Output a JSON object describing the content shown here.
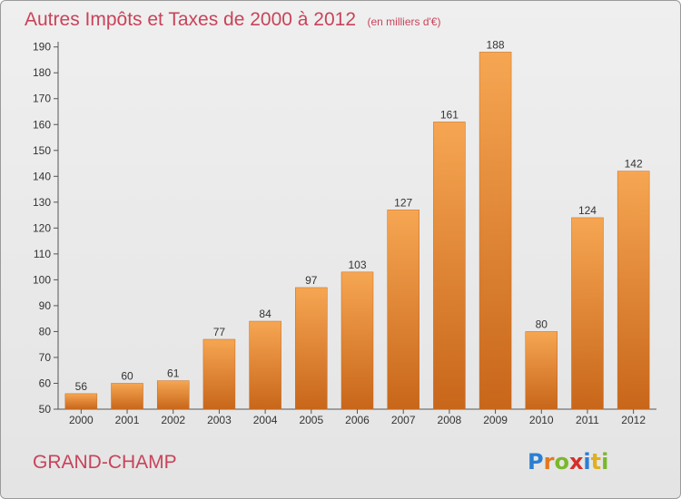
{
  "chart_data": {
    "type": "bar",
    "title": "Autres Impôts et Taxes de 2000 à 2012",
    "subtitle": "(en milliers d'€)",
    "categories": [
      "2000",
      "2001",
      "2002",
      "2003",
      "2004",
      "2005",
      "2006",
      "2007",
      "2008",
      "2009",
      "2010",
      "2011",
      "2012"
    ],
    "values": [
      56,
      60,
      61,
      77,
      84,
      97,
      103,
      127,
      161,
      188,
      80,
      124,
      142
    ],
    "value_labels": [
      "56",
      "60",
      "61",
      "77",
      "84",
      "97",
      "103",
      "127",
      "161",
      "188",
      "80",
      "124",
      "142"
    ],
    "xlabel": "",
    "ylabel": "",
    "ylim": [
      50,
      192
    ],
    "yticks": [
      50,
      60,
      70,
      80,
      90,
      100,
      110,
      120,
      130,
      140,
      150,
      160,
      170,
      180,
      190
    ],
    "grid": false,
    "legend": "none",
    "bar_color_top": "#f6a652",
    "bar_color_bottom": "#c8661a"
  },
  "footer": {
    "commune": "GRAND-CHAMP",
    "logo_letters": [
      {
        "ch": "P",
        "color": "#2a7fd4"
      },
      {
        "ch": "r",
        "color": "#e07a1e"
      },
      {
        "ch": "o",
        "color": "#7ab82a"
      },
      {
        "ch": "x",
        "color": "#d4302a"
      },
      {
        "ch": "i",
        "color": "#2a7fd4"
      },
      {
        "ch": "t",
        "color": "#e0b01e"
      },
      {
        "ch": "i",
        "color": "#7ab82a"
      }
    ]
  }
}
